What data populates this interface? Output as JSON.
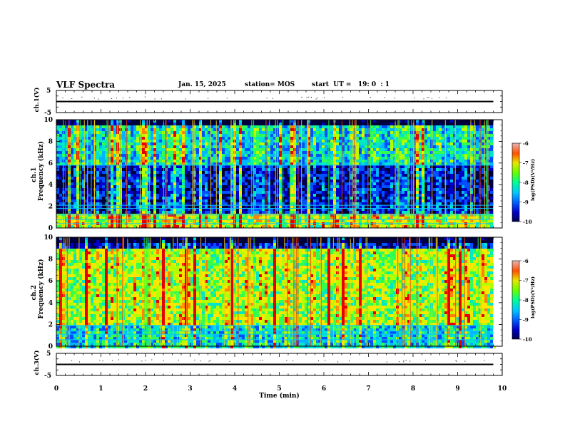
{
  "header": {
    "title": "VLF Spectra",
    "date": "Jan. 15, 2025",
    "station": "station= MOS",
    "start_time": "start  UT =   19: 0  : 1"
  },
  "colors": {
    "spectrogram_colormap": [
      "#00005a",
      "#0000c8",
      "#0050ff",
      "#00b4ff",
      "#00e6c8",
      "#32ff50",
      "#b4ff00",
      "#ffe600",
      "#ff8200",
      "#e60000"
    ],
    "trace": "#000000",
    "horizontal_line_artifact": "#00c8ff"
  },
  "chart_data": [
    {
      "id": "ch1-waveform",
      "type": "line",
      "ylabel": "ch.1(V)",
      "ylim": [
        -5,
        5
      ],
      "yticks": [
        "5",
        "-5"
      ],
      "x": [
        0,
        9.8
      ],
      "y": [
        0,
        0
      ],
      "note_text": ""
    },
    {
      "id": "ch1-spectrogram",
      "type": "heatmap",
      "ylabel_top": "ch.1",
      "ylabel": "Frequency (kHz)",
      "ylim": [
        0,
        10
      ],
      "yticks": [
        "0",
        "2",
        "4",
        "6",
        "8",
        "10"
      ],
      "xlim": [
        0,
        10
      ],
      "data_end_min": 9.8,
      "description_bands": [
        {
          "freq_range_khz": [
            0,
            1.5
          ],
          "level": "high"
        },
        {
          "freq_range_khz": [
            1.5,
            6
          ],
          "level": "low"
        },
        {
          "freq_range_khz": [
            6,
            9.5
          ],
          "level": "medium"
        }
      ],
      "horizontal_lines_khz": [
        0.4,
        0.8,
        1.2,
        1.8,
        2.1,
        5.8
      ],
      "colorbar": {
        "label": "log(PSD)(V²/Hz)",
        "range": [
          -10,
          -6
        ],
        "ticks": [
          "-6",
          "-7",
          "-8",
          "-9",
          "-10"
        ]
      }
    },
    {
      "id": "ch2-spectrogram",
      "type": "heatmap",
      "ylabel_top": "ch.2",
      "ylabel": "Frequency (kHz)",
      "ylim": [
        0,
        10
      ],
      "yticks": [
        "0",
        "2",
        "4",
        "6",
        "8",
        "10"
      ],
      "xlim": [
        0,
        10
      ],
      "data_end_min": 9.8,
      "description_bands": [
        {
          "freq_range_khz": [
            0,
            2
          ],
          "level": "medium"
        },
        {
          "freq_range_khz": [
            2,
            9
          ],
          "level": "high"
        },
        {
          "freq_range_khz": [
            9,
            10
          ],
          "level": "low"
        }
      ],
      "horizontal_lines_khz": [
        0.6,
        1.1,
        1.4,
        1.9
      ],
      "colorbar": {
        "label": "log(PSD)(V²/Hz)",
        "range": [
          -10,
          -6
        ],
        "ticks": [
          "-6",
          "-7",
          "-8",
          "-9",
          "-10"
        ]
      }
    },
    {
      "id": "ch3-waveform",
      "type": "line",
      "ylabel": "ch.3(V)",
      "ylim": [
        -5,
        5
      ],
      "yticks": [
        "5",
        "-5"
      ],
      "x": [
        0,
        9.8
      ],
      "y": [
        0,
        0
      ]
    }
  ],
  "x_axis": {
    "label": "Time (min)",
    "range": [
      0,
      10
    ],
    "ticks": [
      "0",
      "1",
      "2",
      "3",
      "4",
      "5",
      "6",
      "7",
      "8",
      "9",
      "10"
    ]
  }
}
